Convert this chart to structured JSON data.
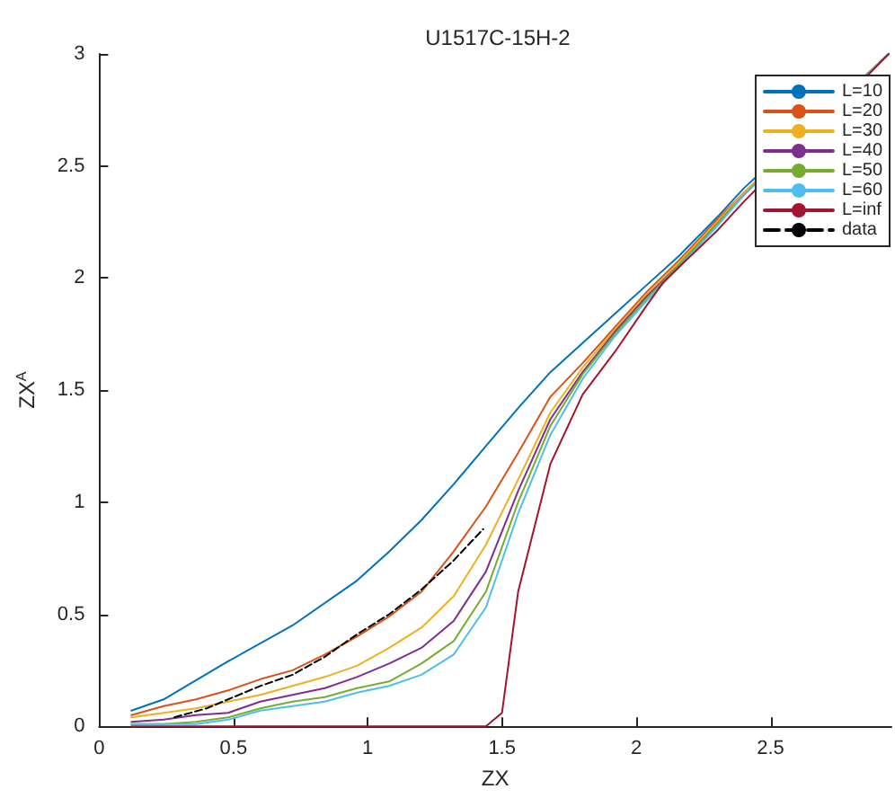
{
  "chart_data": {
    "type": "line",
    "title": "U1517C-15H-2",
    "xlabel": "ZX",
    "ylabel": "ZX$^{A}$",
    "xlim": [
      0,
      2.95
    ],
    "ylim": [
      0,
      3
    ],
    "xticks": [
      0,
      0.5,
      1,
      1.5,
      2,
      2.5
    ],
    "yticks": [
      0,
      0.5,
      1,
      1.5,
      2,
      2.5,
      3
    ],
    "grid": false,
    "legend": "top right",
    "marker": "none",
    "line_style": "solid",
    "series": [
      {
        "name": "L=10",
        "color": "#0072bd",
        "x": [
          0.12,
          0.24,
          0.48,
          0.72,
          0.96,
          1.08,
          1.2,
          1.32,
          1.44,
          1.56,
          1.68,
          1.8,
          1.92,
          2.04,
          2.16,
          2.3,
          2.4,
          2.94
        ],
        "values": [
          0.07,
          0.12,
          0.29,
          0.45,
          0.65,
          0.78,
          0.92,
          1.08,
          1.25,
          1.42,
          1.58,
          1.71,
          1.84,
          1.97,
          2.1,
          2.27,
          2.4,
          3.0
        ]
      },
      {
        "name": "L=20",
        "color": "#d95319",
        "x": [
          0.12,
          0.24,
          0.36,
          0.48,
          0.6,
          0.72,
          0.84,
          0.96,
          1.08,
          1.2,
          1.32,
          1.44,
          1.56,
          1.68,
          1.8,
          1.92,
          2.04,
          2.16,
          2.3,
          2.4,
          2.94
        ],
        "values": [
          0.05,
          0.09,
          0.12,
          0.16,
          0.21,
          0.25,
          0.32,
          0.4,
          0.49,
          0.6,
          0.78,
          0.98,
          1.22,
          1.47,
          1.62,
          1.78,
          1.94,
          2.08,
          2.26,
          2.38,
          3.0
        ]
      },
      {
        "name": "L=30",
        "color": "#edb120",
        "x": [
          0.12,
          0.24,
          0.36,
          0.48,
          0.6,
          0.72,
          0.84,
          0.96,
          1.08,
          1.2,
          1.32,
          1.44,
          1.56,
          1.68,
          1.8,
          1.92,
          2.04,
          2.16,
          2.3,
          2.4,
          2.94
        ],
        "values": [
          0.04,
          0.06,
          0.08,
          0.11,
          0.14,
          0.18,
          0.22,
          0.27,
          0.35,
          0.44,
          0.58,
          0.81,
          1.1,
          1.4,
          1.6,
          1.77,
          1.93,
          2.07,
          2.25,
          2.38,
          3.0
        ]
      },
      {
        "name": "L=40",
        "color": "#7e2f8e",
        "x": [
          0.12,
          0.24,
          0.36,
          0.48,
          0.6,
          0.72,
          0.84,
          0.96,
          1.08,
          1.2,
          1.32,
          1.44,
          1.56,
          1.68,
          1.8,
          1.92,
          2.04,
          2.16,
          2.3,
          2.4,
          2.94
        ],
        "values": [
          0.02,
          0.03,
          0.05,
          0.06,
          0.11,
          0.14,
          0.17,
          0.22,
          0.28,
          0.35,
          0.47,
          0.69,
          1.05,
          1.37,
          1.58,
          1.76,
          1.92,
          2.06,
          2.24,
          2.37,
          3.0
        ]
      },
      {
        "name": "L=50",
        "color": "#77ac30",
        "x": [
          0.12,
          0.24,
          0.36,
          0.48,
          0.6,
          0.72,
          0.84,
          0.96,
          1.08,
          1.2,
          1.32,
          1.44,
          1.56,
          1.68,
          1.8,
          1.92,
          2.04,
          2.16,
          2.3,
          2.4,
          2.94
        ],
        "values": [
          0.01,
          0.01,
          0.02,
          0.04,
          0.08,
          0.11,
          0.13,
          0.17,
          0.2,
          0.28,
          0.38,
          0.6,
          1.0,
          1.34,
          1.57,
          1.75,
          1.91,
          2.06,
          2.24,
          2.37,
          3.0
        ]
      },
      {
        "name": "L=60",
        "color": "#4dbeee",
        "x": [
          0.12,
          0.24,
          0.36,
          0.48,
          0.6,
          0.72,
          0.84,
          0.96,
          1.08,
          1.2,
          1.32,
          1.44,
          1.56,
          1.68,
          1.8,
          1.92,
          2.04,
          2.16,
          2.3,
          2.4,
          2.94
        ],
        "values": [
          0.01,
          0.01,
          0.01,
          0.03,
          0.07,
          0.09,
          0.11,
          0.15,
          0.18,
          0.23,
          0.32,
          0.53,
          0.95,
          1.3,
          1.55,
          1.74,
          1.9,
          2.05,
          2.23,
          2.37,
          3.0
        ]
      },
      {
        "name": "L=inf",
        "color": "#a2142f",
        "x": [
          0.12,
          1.44,
          1.5,
          1.56,
          1.68,
          1.8,
          1.92,
          2.04,
          2.1,
          2.16,
          2.3,
          2.4,
          2.94
        ],
        "values": [
          0,
          0,
          0.06,
          0.6,
          1.17,
          1.48,
          1.67,
          1.88,
          1.98,
          2.05,
          2.21,
          2.34,
          3.0
        ]
      },
      {
        "name": "data",
        "color": "#000000",
        "line_style": "dashed",
        "x": [
          0.28,
          0.4,
          0.5,
          0.6,
          0.72,
          0.84,
          0.96,
          1.08,
          1.2,
          1.32,
          1.43
        ],
        "values": [
          0.04,
          0.08,
          0.13,
          0.18,
          0.23,
          0.31,
          0.41,
          0.5,
          0.61,
          0.74,
          0.88
        ]
      }
    ]
  }
}
